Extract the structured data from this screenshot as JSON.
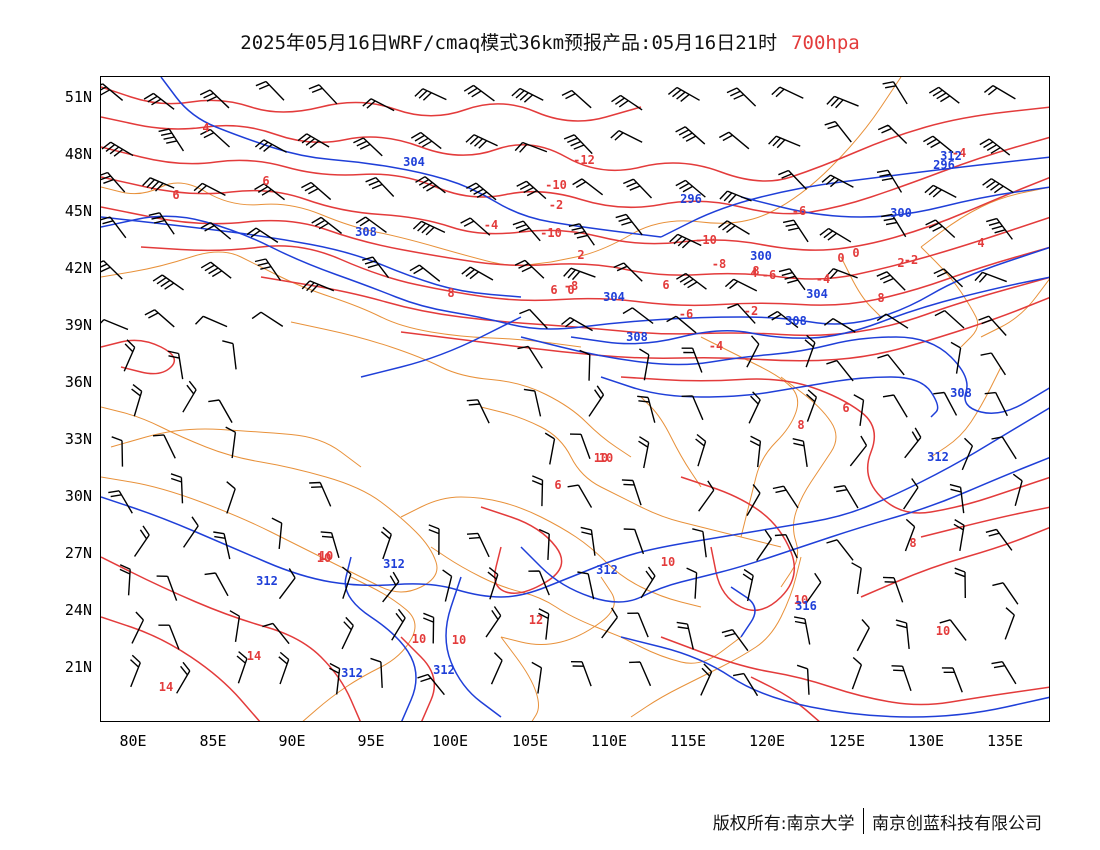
{
  "header": {
    "title": "2025年05月16日WRF/cmaq模式36km预报产品:05月16日21时",
    "level": "700hpa"
  },
  "axes": {
    "lat_labels": [
      "51N",
      "48N",
      "45N",
      "42N",
      "39N",
      "36N",
      "33N",
      "30N",
      "27N",
      "24N",
      "21N"
    ],
    "lon_labels": [
      "80E",
      "85E",
      "90E",
      "95E",
      "100E",
      "105E",
      "110E",
      "115E",
      "120E",
      "125E",
      "130E",
      "135E"
    ]
  },
  "legend_colors": {
    "temperature": "#e33b3b",
    "geopotential_height": "#1f3fd8",
    "boundaries": "#e8913a",
    "wind_barbs": "#000000"
  },
  "contour_labels": {
    "temperature": [
      "-12",
      "-10",
      "-10",
      "-10",
      "-8",
      "-8",
      "-6",
      "-6",
      "-6",
      "-4",
      "-4",
      "-4",
      "-4",
      "-2",
      "-2",
      "-2",
      "0",
      "0",
      "0",
      "2",
      "2",
      "4",
      "4",
      "4",
      "6",
      "6",
      "6",
      "6",
      "6",
      "6",
      "8",
      "8",
      "8",
      "8",
      "8",
      "10",
      "10",
      "10",
      "10",
      "10",
      "10",
      "10",
      "10",
      "10",
      "12",
      "14",
      "14"
    ],
    "height": [
      "304",
      "296",
      "300",
      "308",
      "300",
      "304",
      "304",
      "308",
      "308",
      "308",
      "312",
      "312",
      "312",
      "312",
      "312",
      "312",
      "316",
      "312",
      "296"
    ]
  },
  "footer": {
    "copyright_left": "版权所有:南京大学",
    "copyright_right": "南京创蓝科技有限公司"
  }
}
